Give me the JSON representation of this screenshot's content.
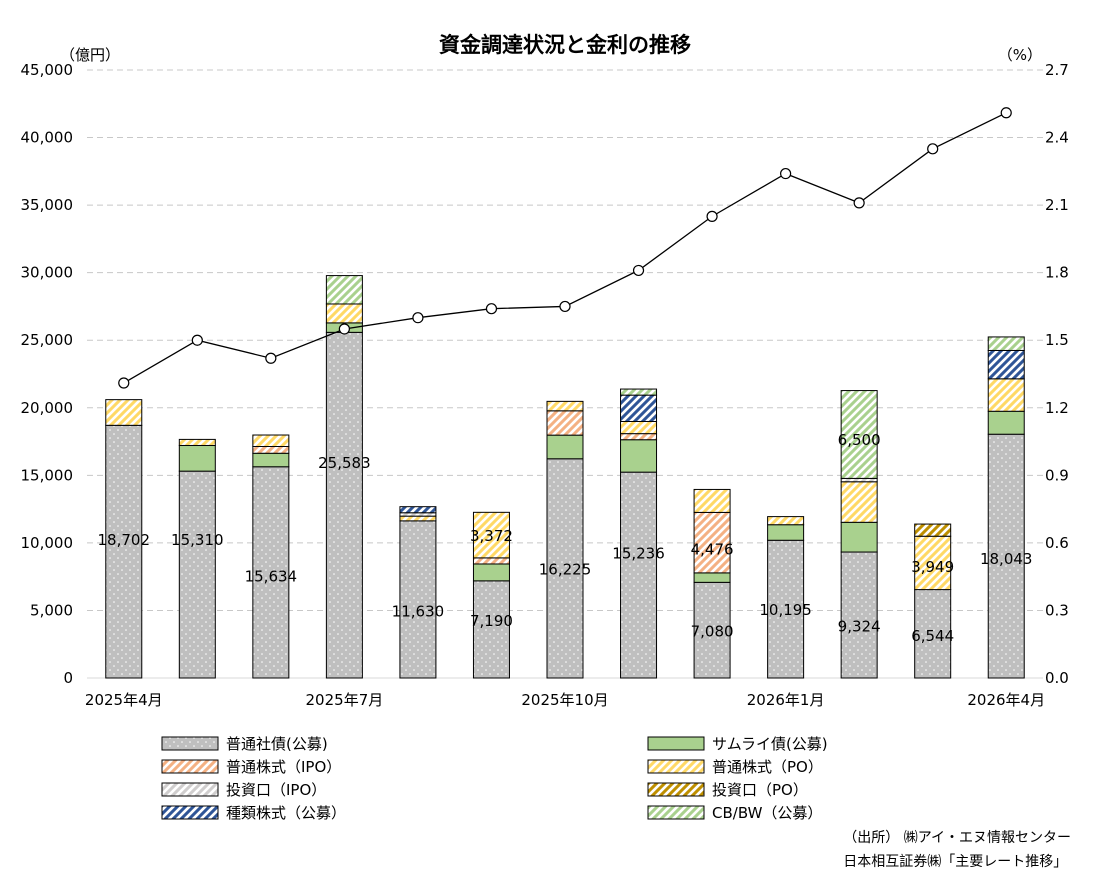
{
  "chart_data": {
    "type": "bar",
    "title": "資金調達状況と金利の推移",
    "y_left_unit": "（億円）",
    "y_right_unit": "（%）",
    "ylim_left": [
      0,
      45000
    ],
    "ylim_right": [
      0,
      2.7
    ],
    "y_left_ticks": [
      "0",
      "5,000",
      "10,000",
      "15,000",
      "20,000",
      "25,000",
      "30,000",
      "35,000",
      "40,000",
      "45,000"
    ],
    "y_right_ticks": [
      "0.0",
      "0.3",
      "0.6",
      "0.9",
      "1.2",
      "1.5",
      "1.8",
      "2.1",
      "2.4",
      "2.7"
    ],
    "x_ticks": [
      {
        "index": 0,
        "label": "2025年4月"
      },
      {
        "index": 3,
        "label": "2025年7月"
      },
      {
        "index": 6,
        "label": "2025年10月"
      },
      {
        "index": 9,
        "label": "2026年1月"
      },
      {
        "index": 12,
        "label": "2026年4月"
      }
    ],
    "categories": [
      "2025-04",
      "2025-05",
      "2025-06",
      "2025-07",
      "2025-08",
      "2025-09",
      "2025-10",
      "2025-11",
      "2025-12",
      "2026-01",
      "2026-02",
      "2026-03",
      "2026-04"
    ],
    "series": [
      {
        "key": "ordinary_bond",
        "name": "普通社債(公募)",
        "color": "#bfbfbf",
        "pattern": "dots",
        "values": [
          18702,
          15310,
          15634,
          25583,
          11630,
          7190,
          16225,
          15236,
          7080,
          10195,
          9324,
          6544,
          18043
        ]
      },
      {
        "key": "samurai_bond",
        "name": "サムライ債(公募)",
        "color": "#a9d18e",
        "pattern": "solid",
        "values": [
          0,
          1900,
          1000,
          700,
          0,
          1250,
          1750,
          2400,
          700,
          1150,
          2200,
          0,
          1700
        ]
      },
      {
        "key": "ipo_stock",
        "name": "普通株式（IPO）",
        "color": "#f4b183",
        "pattern": "hatch",
        "values": [
          0,
          0,
          500,
          0,
          0,
          450,
          1800,
          450,
          4476,
          0,
          0,
          0,
          0
        ]
      },
      {
        "key": "po_stock",
        "name": "普通株式（PO）",
        "color": "#ffd966",
        "pattern": "hatch",
        "values": [
          1900,
          450,
          850,
          1400,
          350,
          3372,
          700,
          900,
          1700,
          600,
          3000,
          3949,
          2400
        ]
      },
      {
        "key": "ipo_fund",
        "name": "投資口（IPO）",
        "color": "#d0cece",
        "pattern": "hatch",
        "values": [
          0,
          0,
          0,
          0,
          250,
          0,
          0,
          0,
          0,
          0,
          250,
          0,
          0
        ]
      },
      {
        "key": "po_fund",
        "name": "投資口（PO）",
        "color": "#bf9000",
        "pattern": "hatch",
        "values": [
          0,
          0,
          0,
          0,
          0,
          0,
          0,
          0,
          0,
          0,
          0,
          900,
          0
        ]
      },
      {
        "key": "class_stock",
        "name": "種類株式（公募）",
        "color": "#2f5597",
        "pattern": "hatch",
        "values": [
          0,
          0,
          0,
          0,
          450,
          0,
          0,
          1950,
          0,
          0,
          0,
          0,
          2100
        ]
      },
      {
        "key": "cb_bw",
        "name": "CB/BW（公募）",
        "color": "#a9d18e",
        "pattern": "hatch",
        "values": [
          0,
          0,
          0,
          2100,
          0,
          0,
          0,
          450,
          0,
          0,
          6500,
          0,
          1000
        ]
      }
    ],
    "bar_labels": [
      {
        "index": 0,
        "text": "18,702",
        "at": 10300
      },
      {
        "index": 1,
        "text": "15,310",
        "at": 10300
      },
      {
        "index": 2,
        "text": "15,634",
        "at": 7600
      },
      {
        "index": 3,
        "text": "25,583",
        "at": 16000
      },
      {
        "index": 4,
        "text": "11,630",
        "at": 5000
      },
      {
        "index": 5,
        "text": "7,190",
        "at": 4300
      },
      {
        "index": 5,
        "text": "3,372",
        "at": 10600
      },
      {
        "index": 6,
        "text": "16,225",
        "at": 8100
      },
      {
        "index": 7,
        "text": "15,236",
        "at": 9300
      },
      {
        "index": 8,
        "text": "4,476",
        "at": 9600
      },
      {
        "index": 8,
        "text": "7,080",
        "at": 3500
      },
      {
        "index": 9,
        "text": "10,195",
        "at": 5100
      },
      {
        "index": 10,
        "text": "9,324",
        "at": 3900
      },
      {
        "index": 10,
        "text": "6,500",
        "at": 17700
      },
      {
        "index": 11,
        "text": "6,544",
        "at": 3200
      },
      {
        "index": 11,
        "text": "3,949",
        "at": 8300
      },
      {
        "index": 12,
        "text": "18,043",
        "at": 8900
      }
    ],
    "rate_line": {
      "values": [
        1.31,
        1.5,
        1.42,
        1.55,
        1.6,
        1.64,
        1.65,
        1.81,
        2.05,
        2.24,
        2.11,
        2.35,
        2.51
      ],
      "marker": "circle-open",
      "color": "#000000"
    },
    "grid": "horizontal-dashed",
    "legend_position": "bottom",
    "legend_order": [
      "ordinary_bond",
      "samurai_bond",
      "ipo_stock",
      "po_stock",
      "ipo_fund",
      "po_fund",
      "class_stock",
      "cb_bw"
    ]
  },
  "source": {
    "line1": "（出所）  ㈱アイ・エヌ情報センター",
    "line2": "日本相互証券㈱「主要レート推移」"
  }
}
